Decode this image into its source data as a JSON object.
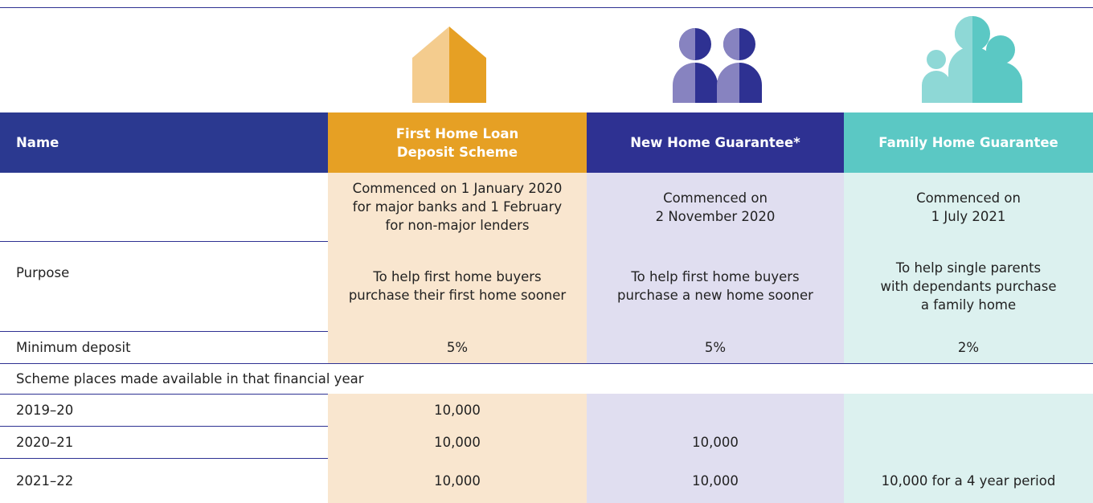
{
  "header": {
    "name": "Name",
    "columns": [
      [
        "First Home Loan",
        "Deposit Scheme"
      ],
      [
        "New Home Guarantee*"
      ],
      [
        "Family Home Guarantee"
      ]
    ]
  },
  "table": {
    "rows": [
      {
        "cells": [
          [
            "Commenced on 1 January 2020",
            "for major banks and 1 February",
            "for non-major lenders"
          ],
          [
            "Commenced on",
            "2 November 2020"
          ],
          [
            "Commenced on",
            "1 July 2021"
          ]
        ]
      },
      {
        "label": "Purpose",
        "cells": [
          [
            "To help first home buyers",
            "purchase their first home sooner"
          ],
          [
            "To help first home buyers",
            "purchase a new home sooner"
          ],
          [
            "To help single parents",
            "with dependants purchase",
            "a family home"
          ]
        ]
      },
      {
        "label": "Minimum deposit",
        "cells": [
          [
            "5%"
          ],
          [
            "5%"
          ],
          [
            "2%"
          ]
        ]
      },
      {
        "section": "Scheme places made available in that financial year"
      },
      {
        "label": "2019–20",
        "cells": [
          [
            "10,000"
          ],
          null,
          null
        ]
      },
      {
        "label": "2020–21",
        "cells": [
          [
            "10,000"
          ],
          [
            "10,000"
          ],
          null
        ]
      },
      {
        "label": "2021–22",
        "cells": [
          [
            "10,000"
          ],
          [
            "10,000"
          ],
          [
            "10,000 for a 4 year period"
          ]
        ]
      }
    ]
  }
}
